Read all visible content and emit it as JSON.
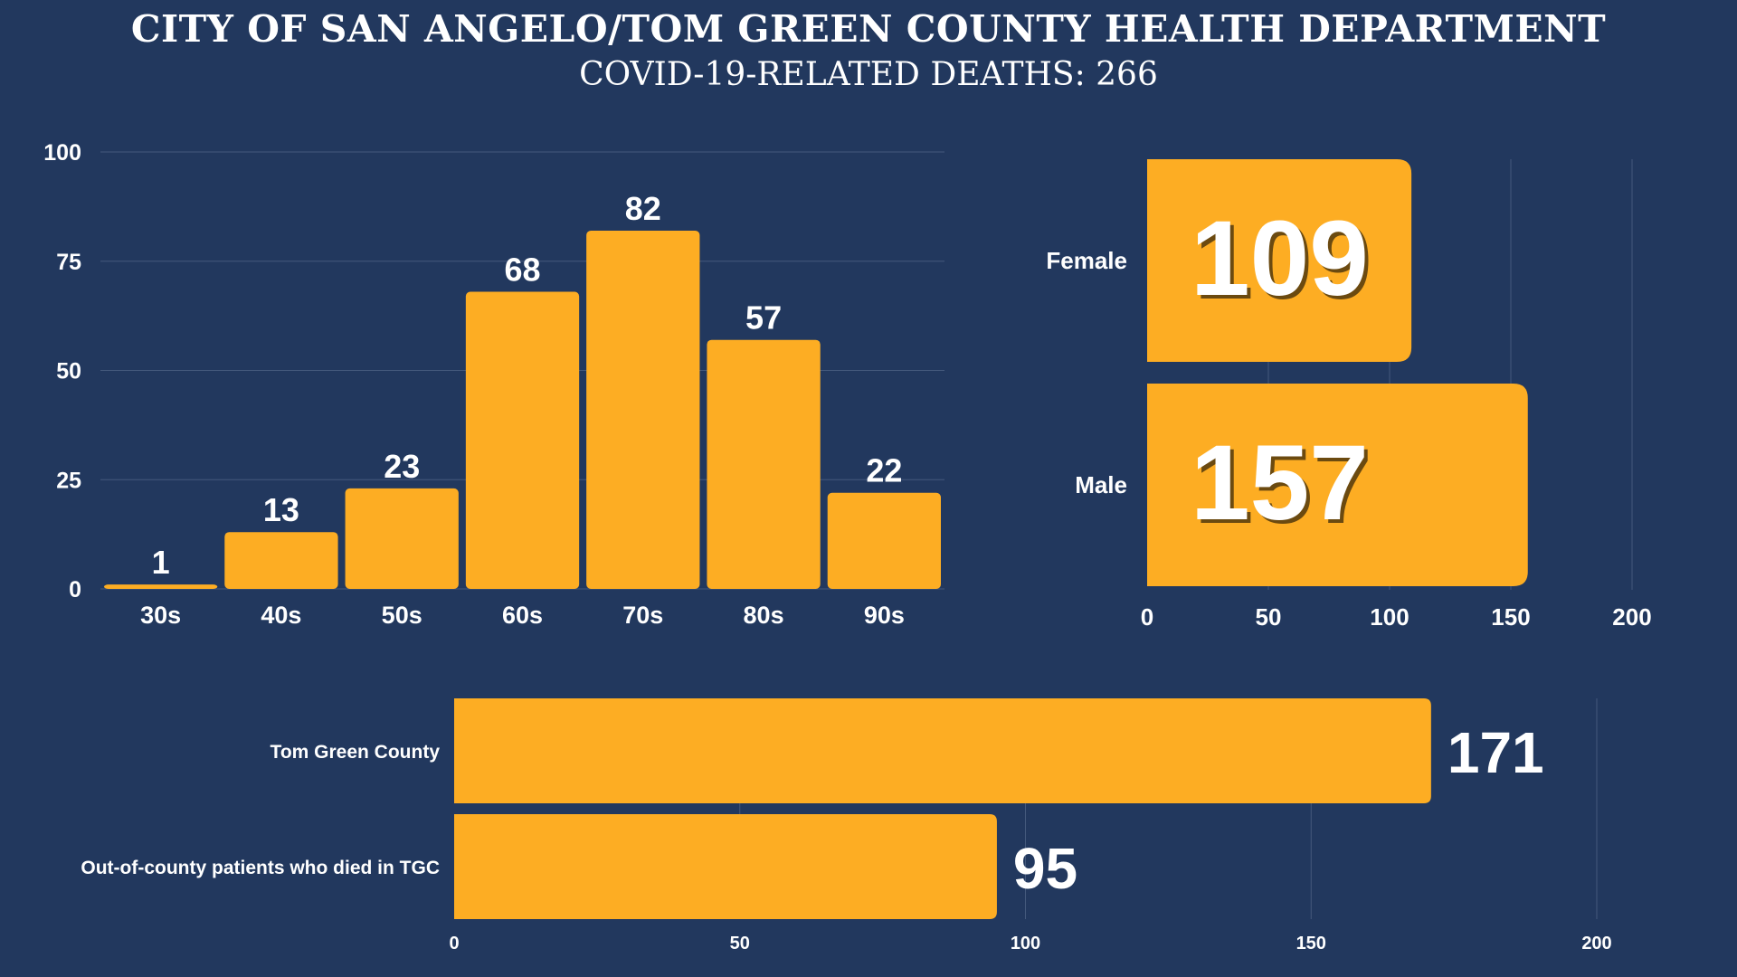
{
  "header": {
    "title": "CITY OF SAN ANGELO/TOM GREEN COUNTY HEALTH DEPARTMENT",
    "subtitle": "COVID-19-RELATED DEATHS: 266"
  },
  "colors": {
    "background": "#22385e",
    "bar": "#fdad23",
    "grid": "#44597c",
    "text": "#ffffff"
  },
  "chart_data": [
    {
      "type": "bar",
      "orientation": "vertical",
      "categories": [
        "30s",
        "40s",
        "50s",
        "60s",
        "70s",
        "80s",
        "90s"
      ],
      "values": [
        1,
        13,
        23,
        68,
        82,
        57,
        22
      ],
      "yticks": [
        "0",
        "25",
        "50",
        "75",
        "100"
      ],
      "ylim": [
        0,
        100
      ],
      "grid": true
    },
    {
      "type": "bar",
      "orientation": "horizontal",
      "categories": [
        "Female",
        "Male"
      ],
      "values": [
        109,
        157
      ],
      "xticks": [
        "0",
        "50",
        "100",
        "150",
        "200"
      ],
      "xlim": [
        0,
        200
      ],
      "grid": true
    },
    {
      "type": "bar",
      "orientation": "horizontal",
      "categories": [
        "Tom Green County",
        "Out-of-county patients who died in TGC"
      ],
      "values": [
        171,
        95
      ],
      "xticks": [
        "0",
        "50",
        "100",
        "150",
        "200"
      ],
      "xlim": [
        0,
        200
      ],
      "grid": true
    }
  ]
}
